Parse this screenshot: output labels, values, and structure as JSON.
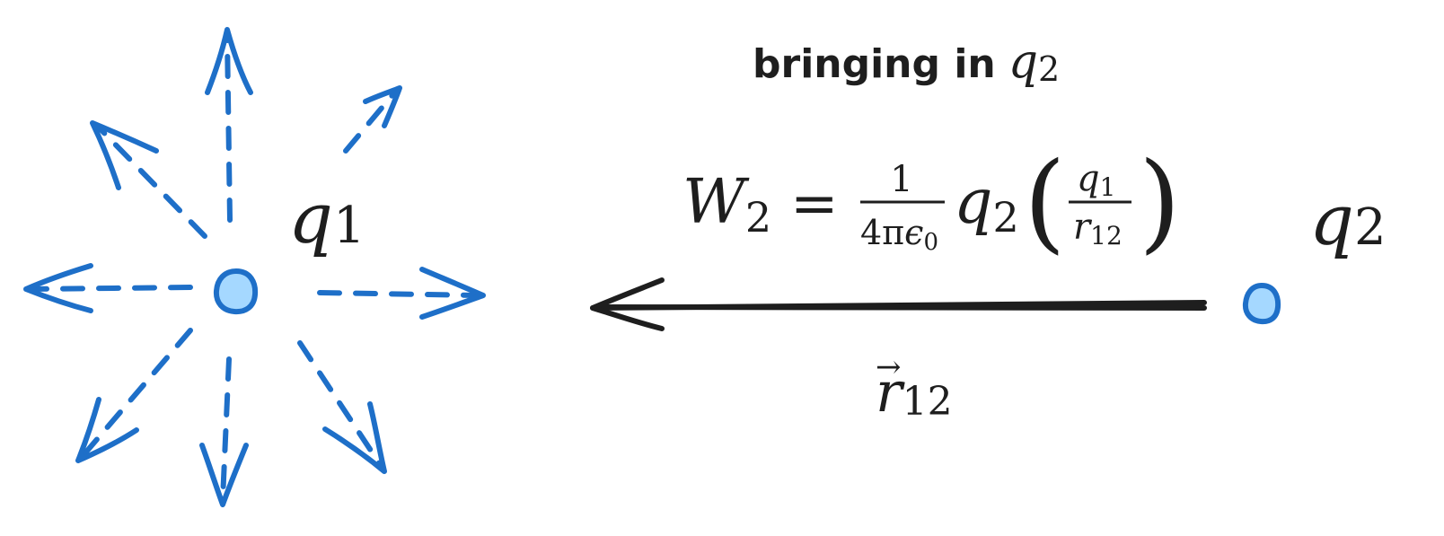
{
  "colors": {
    "field_blue": "#1e6fc8",
    "charge_fill": "#a5d8ff",
    "ink": "#1e1e1e",
    "background": "#ffffff"
  },
  "caption": {
    "text": "bringing in",
    "symbol": "q",
    "subscript": "2"
  },
  "equation": {
    "lhs_symbol": "W",
    "lhs_subscript": "2",
    "equals": "=",
    "const_numerator": "1",
    "const_denominator_prefix": "4π",
    "const_denominator_symbol": "ϵ",
    "const_denominator_subscript": "0",
    "mid_symbol": "q",
    "mid_subscript": "2",
    "paren_open": "(",
    "paren_close": ")",
    "frac_num_symbol": "q",
    "frac_num_subscript": "1",
    "frac_den_symbol": "r",
    "frac_den_subscript": "12"
  },
  "charge_1": {
    "symbol": "q",
    "subscript": "1"
  },
  "charge_2": {
    "symbol": "q",
    "subscript": "2"
  },
  "displacement": {
    "symbol": "r",
    "subscript": "12",
    "vector_mark": "→"
  }
}
